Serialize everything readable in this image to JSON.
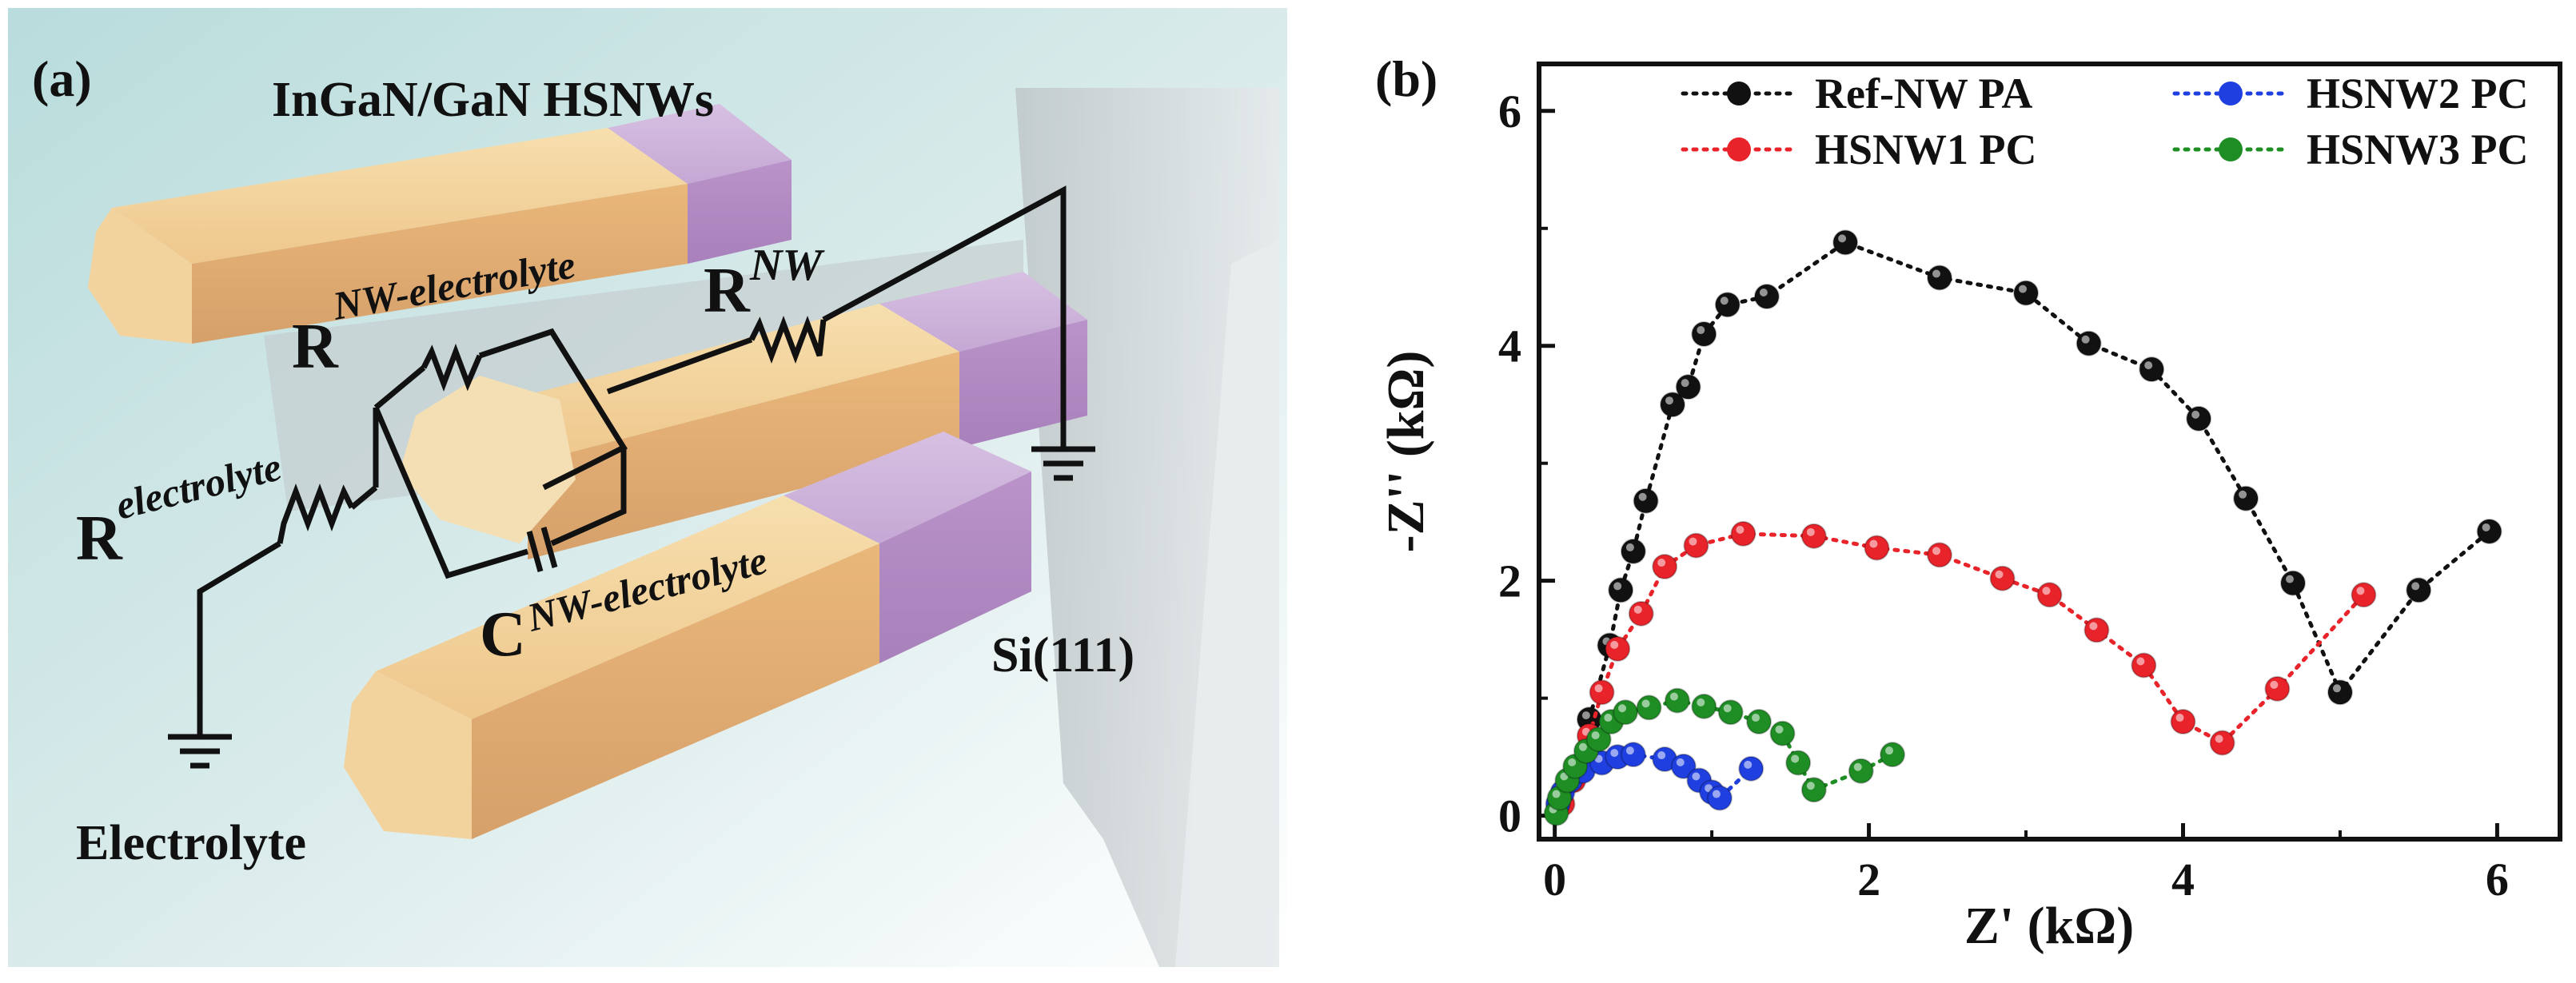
{
  "panel_a": {
    "label": "(a)",
    "title": "InGaN/GaN HSNWs",
    "r_nw_main": "R",
    "r_nw_sub": "NW",
    "r_nwe_main": "R",
    "r_nwe_sub": "NW-electrolyte",
    "r_el_main": "R",
    "r_el_sub": "electrolyte",
    "c_main": "C",
    "c_sub": "NW-electrolyte",
    "substrate": "Si(111)",
    "electrolyte": "Electrolyte",
    "colors": {
      "nanowire_body": "#f0c98f",
      "nanowire_top": "#c8a6d6",
      "substrate": "#c9cfd2",
      "background": "#b8d8d8",
      "wire": "#111111"
    }
  },
  "panel_b": {
    "label": "(b)"
  },
  "chart_data": {
    "type": "scatter",
    "xlabel": "Z' (kΩ)",
    "ylabel": "-Z'' (kΩ)",
    "xlim": [
      -0.1,
      6.4
    ],
    "ylim": [
      -0.2,
      6.4
    ],
    "xticks": [
      0,
      2,
      4,
      6
    ],
    "yticks": [
      0,
      2,
      4,
      6
    ],
    "grid": false,
    "legend": "top-right",
    "series": [
      {
        "name": "Ref-NW PA",
        "color": "#111111",
        "points": [
          [
            0.22,
            0.82
          ],
          [
            0.35,
            1.45
          ],
          [
            0.42,
            1.92
          ],
          [
            0.5,
            2.25
          ],
          [
            0.58,
            2.68
          ],
          [
            0.75,
            3.5
          ],
          [
            0.85,
            3.65
          ],
          [
            0.95,
            4.1
          ],
          [
            1.1,
            4.35
          ],
          [
            1.35,
            4.42
          ],
          [
            1.85,
            4.88
          ],
          [
            2.45,
            4.58
          ],
          [
            3.0,
            4.45
          ],
          [
            3.4,
            4.02
          ],
          [
            3.8,
            3.8
          ],
          [
            4.1,
            3.38
          ],
          [
            4.4,
            2.7
          ],
          [
            4.7,
            1.98
          ],
          [
            5.0,
            1.05
          ],
          [
            5.5,
            1.92
          ],
          [
            5.95,
            2.42
          ]
        ]
      },
      {
        "name": "HSNW1 PC",
        "color": "#e8232a",
        "points": [
          [
            0.05,
            0.1
          ],
          [
            0.12,
            0.3
          ],
          [
            0.22,
            0.68
          ],
          [
            0.3,
            1.05
          ],
          [
            0.4,
            1.42
          ],
          [
            0.55,
            1.72
          ],
          [
            0.7,
            2.12
          ],
          [
            0.9,
            2.3
          ],
          [
            1.2,
            2.4
          ],
          [
            1.65,
            2.38
          ],
          [
            2.05,
            2.28
          ],
          [
            2.45,
            2.22
          ],
          [
            2.85,
            2.02
          ],
          [
            3.15,
            1.88
          ],
          [
            3.45,
            1.58
          ],
          [
            3.75,
            1.28
          ],
          [
            4.0,
            0.8
          ],
          [
            4.25,
            0.62
          ],
          [
            4.6,
            1.08
          ],
          [
            5.15,
            1.88
          ]
        ]
      },
      {
        "name": "HSNW2 PC",
        "color": "#1f3fe0",
        "points": [
          [
            0.02,
            0.1
          ],
          [
            0.05,
            0.2
          ],
          [
            0.1,
            0.3
          ],
          [
            0.18,
            0.38
          ],
          [
            0.3,
            0.45
          ],
          [
            0.4,
            0.5
          ],
          [
            0.5,
            0.52
          ],
          [
            0.7,
            0.48
          ],
          [
            0.82,
            0.42
          ],
          [
            0.92,
            0.3
          ],
          [
            1.0,
            0.2
          ],
          [
            1.05,
            0.15
          ],
          [
            1.25,
            0.4
          ]
        ]
      },
      {
        "name": "HSNW3 PC",
        "color": "#1e8e24",
        "points": [
          [
            0.01,
            0.02
          ],
          [
            0.03,
            0.15
          ],
          [
            0.08,
            0.3
          ],
          [
            0.13,
            0.42
          ],
          [
            0.2,
            0.55
          ],
          [
            0.28,
            0.65
          ],
          [
            0.36,
            0.8
          ],
          [
            0.45,
            0.88
          ],
          [
            0.6,
            0.92
          ],
          [
            0.78,
            0.98
          ],
          [
            0.95,
            0.93
          ],
          [
            1.12,
            0.88
          ],
          [
            1.3,
            0.8
          ],
          [
            1.45,
            0.7
          ],
          [
            1.55,
            0.45
          ],
          [
            1.65,
            0.22
          ],
          [
            1.95,
            0.38
          ],
          [
            2.15,
            0.52
          ]
        ]
      }
    ]
  }
}
